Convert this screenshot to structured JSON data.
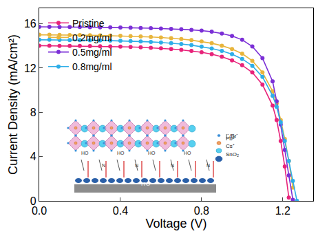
{
  "chart_data": {
    "type": "line",
    "x_label": "Voltage (V)",
    "y_label": "Current Density (mA/cm²)",
    "x": [
      0,
      0.05,
      0.1,
      0.15,
      0.2,
      0.25,
      0.3,
      0.35,
      0.4,
      0.45,
      0.5,
      0.55,
      0.6,
      0.65,
      0.7,
      0.75,
      0.8,
      0.85,
      0.9,
      0.95,
      1.0,
      1.05,
      1.1,
      1.15,
      1.17,
      1.19,
      1.21,
      1.23,
      1.25,
      1.27
    ],
    "series": [
      {
        "name": "Pristine",
        "color": "#e8237a",
        "values": [
          14.02,
          14.01,
          14.0,
          14.0,
          13.99,
          13.98,
          13.97,
          13.95,
          13.93,
          13.9,
          13.87,
          13.83,
          13.78,
          13.72,
          13.64,
          13.55,
          13.42,
          13.25,
          13.02,
          12.7,
          12.25,
          11.6,
          10.5,
          8.6,
          7.3,
          5.4,
          3.1,
          0.3,
          null,
          null
        ]
      },
      {
        "name": "0.2mg/ml",
        "color": "#e8b53c",
        "values": [
          15.0,
          15.0,
          14.99,
          14.98,
          14.97,
          14.96,
          14.95,
          14.93,
          14.91,
          14.88,
          14.85,
          14.81,
          14.76,
          14.7,
          14.62,
          14.52,
          14.4,
          14.24,
          14.02,
          13.72,
          13.3,
          12.65,
          11.6,
          9.9,
          8.8,
          7.3,
          5.6,
          3.6,
          1.2,
          null
        ]
      },
      {
        "name": "0.5mg/ml",
        "color": "#7b2fd6",
        "values": [
          15.72,
          15.72,
          15.71,
          15.71,
          15.7,
          15.69,
          15.68,
          15.67,
          15.66,
          15.64,
          15.62,
          15.6,
          15.57,
          15.54,
          15.5,
          15.45,
          15.38,
          15.28,
          15.12,
          14.9,
          14.55,
          13.95,
          12.9,
          10.8,
          9.0,
          6.9,
          4.6,
          2.3,
          0.1,
          null
        ]
      },
      {
        "name": "0.8mg/ml",
        "color": "#2eaee8",
        "values": [
          14.55,
          14.55,
          14.54,
          14.53,
          14.52,
          14.51,
          14.5,
          14.48,
          14.46,
          14.43,
          14.4,
          14.36,
          14.31,
          14.25,
          14.17,
          14.07,
          13.94,
          13.77,
          13.55,
          13.25,
          12.82,
          12.2,
          11.2,
          9.5,
          8.5,
          7.1,
          5.4,
          3.6,
          1.8,
          0.0
        ]
      }
    ],
    "xlim": [
      0,
      1.35
    ],
    "xticks": [
      {
        "value": 0,
        "label": "0.0"
      },
      0.4,
      0.8,
      1.2
    ],
    "ylim": [
      0,
      17.4
    ],
    "yticks": [
      0,
      4,
      8,
      12,
      16
    ],
    "grid": false,
    "legend": "upper left",
    "marker": "circle",
    "line_style": "solid",
    "annotations": [
      "I⁻/Br⁻",
      "Pb²⁺",
      "Cs⁺",
      "SnO₂",
      "ITO",
      "HO",
      "N"
    ]
  }
}
